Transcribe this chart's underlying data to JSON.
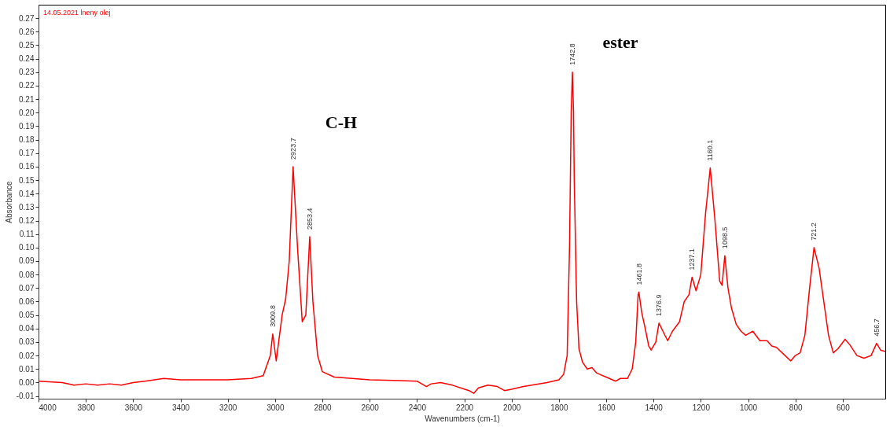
{
  "chart_data": {
    "type": "line",
    "xlabel": "Wavenumbers (cm-1)",
    "ylabel": "Absorbance",
    "xlim": [
      4000,
      420
    ],
    "ylim": [
      -0.012,
      0.28
    ],
    "xticks": [
      4000,
      3800,
      3600,
      3400,
      3200,
      3000,
      2800,
      2600,
      2400,
      2200,
      2000,
      1800,
      1600,
      1400,
      1200,
      1000,
      800,
      600
    ],
    "yticks": [
      {
        "value": -0.01,
        "label": "-0.01"
      },
      {
        "value": 0,
        "label": "0.00"
      },
      0.01,
      0.02,
      0.03,
      0.04,
      0.05,
      0.06,
      0.07,
      0.08,
      0.09,
      {
        "value": 0.1,
        "label": "0.10"
      },
      0.11,
      0.12,
      0.13,
      0.14,
      0.15,
      0.16,
      0.17,
      0.18,
      0.19,
      {
        "value": 0.2,
        "label": "0.20"
      },
      0.21,
      0.22,
      0.23,
      0.24,
      0.25,
      0.26,
      0.27
    ],
    "grid": false,
    "marker": "none",
    "line_style": "solid",
    "series": [
      {
        "color": "#ff0000",
        "x": [
          4000,
          3900,
          3850,
          3800,
          3750,
          3700,
          3650,
          3600,
          3550,
          3470,
          3400,
          3200,
          3100,
          3050,
          3020,
          3009.8,
          2995,
          2970,
          2955,
          2940,
          2923.7,
          2905,
          2885,
          2870,
          2853.4,
          2840,
          2820,
          2800,
          2750,
          2600,
          2400,
          2360,
          2340,
          2300,
          2250,
          2180,
          2160,
          2140,
          2100,
          2060,
          2030,
          2000,
          1950,
          1850,
          1800,
          1780,
          1765,
          1755,
          1748,
          1742.8,
          1738,
          1735,
          1725,
          1715,
          1700,
          1680,
          1660,
          1640,
          1600,
          1560,
          1540,
          1510,
          1490,
          1475,
          1465,
          1461.8,
          1450,
          1435,
          1420,
          1410,
          1390,
          1376.9,
          1360,
          1340,
          1320,
          1290,
          1270,
          1250,
          1237.1,
          1220,
          1200,
          1180,
          1160.1,
          1140,
          1120,
          1110,
          1098.5,
          1085,
          1070,
          1050,
          1030,
          1010,
          980,
          950,
          920,
          900,
          880,
          850,
          820,
          800,
          780,
          760,
          740,
          721.2,
          700,
          680,
          660,
          640,
          620,
          590,
          570,
          540,
          510,
          480,
          456.7,
          440,
          420
        ],
        "values": [
          0.001,
          0.0,
          -0.002,
          -0.001,
          -0.002,
          -0.001,
          -0.002,
          0.0,
          0.001,
          0.003,
          0.002,
          0.002,
          0.003,
          0.005,
          0.02,
          0.036,
          0.016,
          0.05,
          0.062,
          0.09,
          0.16,
          0.1,
          0.045,
          0.05,
          0.108,
          0.06,
          0.02,
          0.008,
          0.004,
          0.002,
          0.001,
          -0.003,
          -0.001,
          0.0,
          -0.002,
          -0.006,
          -0.008,
          -0.004,
          -0.002,
          -0.003,
          -0.006,
          -0.005,
          -0.003,
          0.0,
          0.002,
          0.006,
          0.02,
          0.1,
          0.2,
          0.23,
          0.2,
          0.15,
          0.06,
          0.025,
          0.015,
          0.01,
          0.011,
          0.007,
          0.004,
          0.001,
          0.003,
          0.003,
          0.01,
          0.03,
          0.065,
          0.067,
          0.052,
          0.04,
          0.027,
          0.024,
          0.03,
          0.044,
          0.038,
          0.031,
          0.038,
          0.045,
          0.06,
          0.065,
          0.078,
          0.068,
          0.08,
          0.125,
          0.159,
          0.12,
          0.075,
          0.072,
          0.094,
          0.07,
          0.055,
          0.043,
          0.038,
          0.035,
          0.038,
          0.031,
          0.031,
          0.027,
          0.026,
          0.021,
          0.016,
          0.02,
          0.022,
          0.035,
          0.07,
          0.1,
          0.085,
          0.06,
          0.035,
          0.022,
          0.025,
          0.032,
          0.028,
          0.02,
          0.018,
          0.02,
          0.029,
          0.024,
          0.023
        ]
      }
    ],
    "annotations": [
      "14.05.2021 lneny olej",
      "C-H",
      "ester",
      {
        "text": "3009.8",
        "x": 3009.8,
        "y": 0.036
      },
      {
        "text": "2923.7",
        "x": 2923.7,
        "y": 0.16
      },
      {
        "text": "2853.4",
        "x": 2853.4,
        "y": 0.108
      },
      {
        "text": "1742.8",
        "x": 1742.8,
        "y": 0.23
      },
      {
        "text": "1461.8",
        "x": 1461.8,
        "y": 0.067
      },
      {
        "text": "1376.9",
        "x": 1376.9,
        "y": 0.044
      },
      {
        "text": "1237.1",
        "x": 1237.1,
        "y": 0.078
      },
      {
        "text": "1160.1",
        "x": 1160.1,
        "y": 0.159
      },
      {
        "text": "1098.5",
        "x": 1098.5,
        "y": 0.094
      },
      {
        "text": "721.2",
        "x": 721.2,
        "y": 0.1
      },
      {
        "text": "456.7",
        "x": 456.7,
        "y": 0.029
      }
    ]
  }
}
